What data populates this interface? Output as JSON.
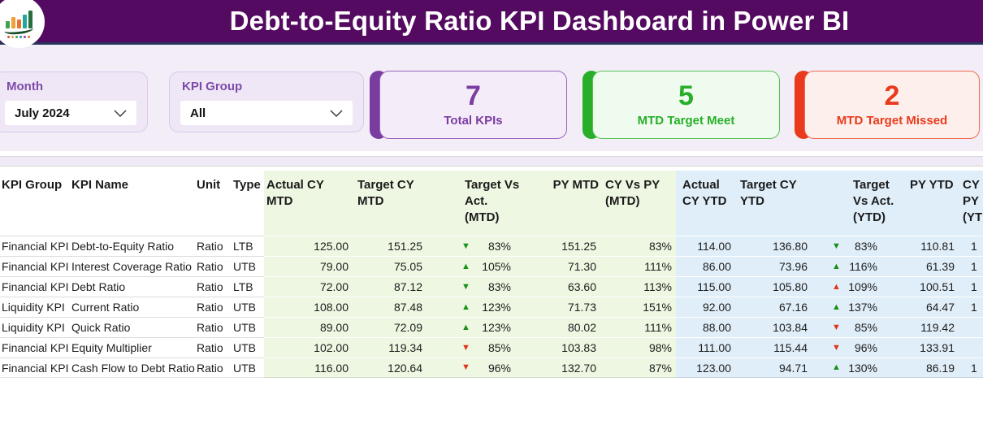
{
  "header": {
    "title": "Debt-to-Equity Ratio KPI Dashboard in Power BI",
    "logo_icon": "bar-chart-logo"
  },
  "colors": {
    "header_bg": "#540A60",
    "header_border": "#26335E",
    "page_bg": "#F2EDF7",
    "strip_bg": "#F0EAF6",
    "green_col": "#EDF7E1",
    "blue_col": "#E0EEF9",
    "delta_green": "#169016",
    "delta_red": "#E2331A",
    "filter_label": "#7C4BA8"
  },
  "filters": {
    "month": {
      "label": "Month",
      "value": "July 2024"
    },
    "kpi_group": {
      "label": "KPI Group",
      "value": "All"
    }
  },
  "cards": [
    {
      "name": "total-kpis-card",
      "value": "7",
      "label": "Total KPIs",
      "accent": "#7B3CA0",
      "bg": "#F4EDF9",
      "border": "#9C64BC"
    },
    {
      "name": "mtd-target-meet-card",
      "value": "5",
      "label": "MTD Target Meet",
      "accent": "#28AE28",
      "bg": "#F0FBF0",
      "border": "#57C353"
    },
    {
      "name": "mtd-target-missed-card",
      "value": "2",
      "label": "MTD Target Missed",
      "accent": "#E93A1D",
      "bg": "#FDF0EC",
      "border": "#F26A4F"
    }
  ],
  "table": {
    "columns": [
      {
        "id": "group",
        "label": "KPI Group"
      },
      {
        "id": "name",
        "label": "KPI Name"
      },
      {
        "id": "unit",
        "label": "Unit"
      },
      {
        "id": "type",
        "label": "Type"
      },
      {
        "id": "actual_mtd",
        "label": "Actual CY MTD"
      },
      {
        "id": "target_mtd",
        "label": "Target CY MTD"
      },
      {
        "id": "tva_mtd",
        "label": "Target Vs Act. (MTD)"
      },
      {
        "id": "py_mtd",
        "label": "PY MTD"
      },
      {
        "id": "cvp_mtd",
        "label": "CY Vs PY (MTD)"
      },
      {
        "id": "actual_ytd",
        "label": "Actual CY YTD"
      },
      {
        "id": "target_ytd",
        "label": "Target CY YTD"
      },
      {
        "id": "tva_ytd",
        "label": "Target Vs Act. (YTD)"
      },
      {
        "id": "py_ytd",
        "label": "PY YTD"
      },
      {
        "id": "cvp_ytd",
        "label": "CY Vs PY (YTD)"
      }
    ],
    "rows": [
      {
        "group": "Financial KPI",
        "name": "Debt-to-Equity Ratio",
        "unit": "Ratio",
        "type": "LTB",
        "actual_mtd": "125.00",
        "target_mtd": "151.25",
        "tva_mtd": {
          "dir": "down",
          "color": "green",
          "value": "83%"
        },
        "py_mtd": "151.25",
        "cvp_mtd": "83%",
        "actual_ytd": "114.00",
        "target_ytd": "136.80",
        "tva_ytd": {
          "dir": "down",
          "color": "green",
          "value": "83%"
        },
        "py_ytd": "110.81",
        "cvp_ytd": "1"
      },
      {
        "group": "Financial KPI",
        "name": "Interest Coverage Ratio",
        "unit": "Ratio",
        "type": "UTB",
        "actual_mtd": "79.00",
        "target_mtd": "75.05",
        "tva_mtd": {
          "dir": "up",
          "color": "green",
          "value": "105%"
        },
        "py_mtd": "71.30",
        "cvp_mtd": "111%",
        "actual_ytd": "86.00",
        "target_ytd": "73.96",
        "tva_ytd": {
          "dir": "up",
          "color": "green",
          "value": "116%"
        },
        "py_ytd": "61.39",
        "cvp_ytd": "1"
      },
      {
        "group": "Financial KPI",
        "name": "Debt Ratio",
        "unit": "Ratio",
        "type": "LTB",
        "actual_mtd": "72.00",
        "target_mtd": "87.12",
        "tva_mtd": {
          "dir": "down",
          "color": "green",
          "value": "83%"
        },
        "py_mtd": "63.60",
        "cvp_mtd": "113%",
        "actual_ytd": "115.00",
        "target_ytd": "105.80",
        "tva_ytd": {
          "dir": "up",
          "color": "red",
          "value": "109%"
        },
        "py_ytd": "100.51",
        "cvp_ytd": "1"
      },
      {
        "group": "Liquidity KPI",
        "name": "Current Ratio",
        "unit": "Ratio",
        "type": "UTB",
        "actual_mtd": "108.00",
        "target_mtd": "87.48",
        "tva_mtd": {
          "dir": "up",
          "color": "green",
          "value": "123%"
        },
        "py_mtd": "71.73",
        "cvp_mtd": "151%",
        "actual_ytd": "92.00",
        "target_ytd": "67.16",
        "tva_ytd": {
          "dir": "up",
          "color": "green",
          "value": "137%"
        },
        "py_ytd": "64.47",
        "cvp_ytd": "1"
      },
      {
        "group": "Liquidity KPI",
        "name": "Quick Ratio",
        "unit": "Ratio",
        "type": "UTB",
        "actual_mtd": "89.00",
        "target_mtd": "72.09",
        "tva_mtd": {
          "dir": "up",
          "color": "green",
          "value": "123%"
        },
        "py_mtd": "80.02",
        "cvp_mtd": "111%",
        "actual_ytd": "88.00",
        "target_ytd": "103.84",
        "tva_ytd": {
          "dir": "down",
          "color": "red",
          "value": "85%"
        },
        "py_ytd": "119.42",
        "cvp_ytd": ""
      },
      {
        "group": "Financial KPI",
        "name": "Equity Multiplier",
        "unit": "Ratio",
        "type": "UTB",
        "actual_mtd": "102.00",
        "target_mtd": "119.34",
        "tva_mtd": {
          "dir": "down",
          "color": "red",
          "value": "85%"
        },
        "py_mtd": "103.83",
        "cvp_mtd": "98%",
        "actual_ytd": "111.00",
        "target_ytd": "115.44",
        "tva_ytd": {
          "dir": "down",
          "color": "red",
          "value": "96%"
        },
        "py_ytd": "133.91",
        "cvp_ytd": ""
      },
      {
        "group": "Financial KPI",
        "name": "Cash Flow to Debt Ratio",
        "unit": "Ratio",
        "type": "UTB",
        "actual_mtd": "116.00",
        "target_mtd": "120.64",
        "tva_mtd": {
          "dir": "down",
          "color": "red",
          "value": "96%"
        },
        "py_mtd": "132.70",
        "cvp_mtd": "87%",
        "actual_ytd": "123.00",
        "target_ytd": "94.71",
        "tva_ytd": {
          "dir": "up",
          "color": "green",
          "value": "130%"
        },
        "py_ytd": "86.19",
        "cvp_ytd": "1"
      }
    ]
  }
}
